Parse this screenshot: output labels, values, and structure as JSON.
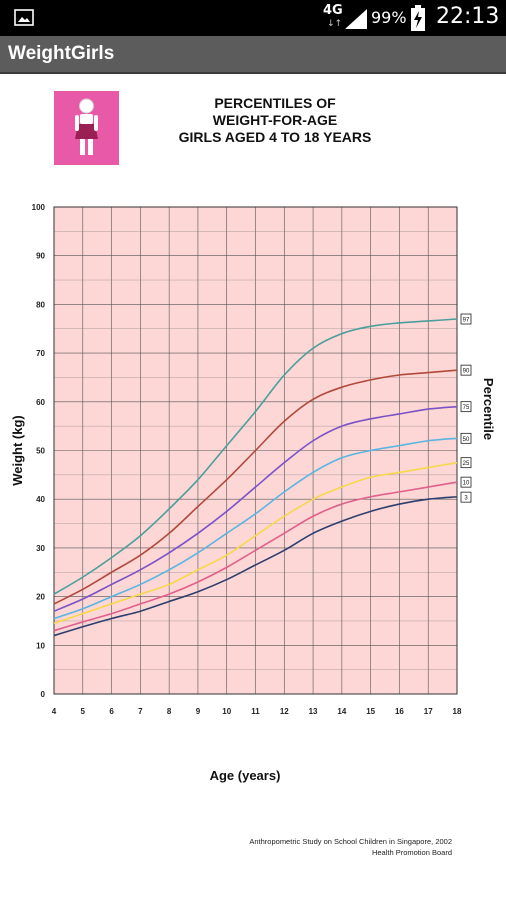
{
  "status_bar": {
    "network": "4G",
    "network_arrows": "↓↑",
    "battery_percent": "99%",
    "time": "22:13",
    "icons": [
      "image-notification-icon",
      "signal-icon",
      "battery-charging-icon"
    ]
  },
  "app_bar": {
    "title": "WeightGirls"
  },
  "chart_data": {
    "type": "line",
    "title_lines": [
      "PERCENTILES OF",
      "WEIGHT-FOR-AGE",
      "GIRLS AGED 4 TO 18 YEARS"
    ],
    "xlabel": "Age (years)",
    "ylabel": "Weight (kg)",
    "right_label": "Percentile",
    "xlim": [
      4,
      18
    ],
    "ylim": [
      0,
      100
    ],
    "x_ticks": [
      4,
      5,
      6,
      7,
      8,
      9,
      10,
      11,
      12,
      13,
      14,
      15,
      16,
      17,
      18
    ],
    "y_ticks": [
      0,
      10,
      20,
      30,
      40,
      50,
      60,
      70,
      80,
      90,
      100
    ],
    "grid": true,
    "background_color": "#fdd6d6",
    "x": [
      4,
      5,
      6,
      7,
      8,
      9,
      10,
      11,
      12,
      13,
      14,
      15,
      16,
      17,
      18
    ],
    "series": [
      {
        "name": "97",
        "color": "#4a9f9b",
        "values": [
          20.5,
          24,
          28,
          32.5,
          38,
          44,
          51,
          58,
          65.5,
          71,
          74,
          75.5,
          76.2,
          76.6,
          77
        ]
      },
      {
        "name": "90",
        "color": "#b24a3c",
        "values": [
          18.5,
          21.5,
          25,
          28.5,
          33,
          38.5,
          44,
          50,
          56,
          60.5,
          63,
          64.5,
          65.5,
          66,
          66.5
        ]
      },
      {
        "name": "75",
        "color": "#7a52c8",
        "values": [
          17,
          19.5,
          22.5,
          25.5,
          29,
          33,
          37.5,
          42.5,
          47.5,
          52,
          55,
          56.5,
          57.5,
          58.5,
          59
        ]
      },
      {
        "name": "50",
        "color": "#5ab5e0",
        "values": [
          15.5,
          17.5,
          20,
          22.5,
          25.5,
          29,
          33,
          37,
          41.5,
          45.5,
          48.5,
          50,
          51,
          52,
          52.5
        ]
      },
      {
        "name": "25",
        "color": "#f7d84a",
        "values": [
          14.5,
          16.5,
          18.5,
          20.5,
          22.5,
          25.5,
          28.5,
          32.5,
          36.5,
          40,
          42.5,
          44.5,
          45.5,
          46.5,
          47.5
        ]
      },
      {
        "name": "10",
        "color": "#e0608c",
        "values": [
          13,
          14.8,
          16.5,
          18.5,
          20.5,
          23,
          26,
          29.5,
          33,
          36.5,
          39,
          40.5,
          41.5,
          42.5,
          43.5
        ]
      },
      {
        "name": "3",
        "color": "#2d3f6e",
        "values": [
          12,
          13.8,
          15.5,
          17,
          19,
          21,
          23.5,
          26.5,
          29.5,
          33,
          35.5,
          37.5,
          39,
          40,
          40.5
        ]
      }
    ],
    "source_lines": [
      "Anthropometric Study on School Children in Singapore, 2002",
      "Health Promotion Board"
    ]
  }
}
